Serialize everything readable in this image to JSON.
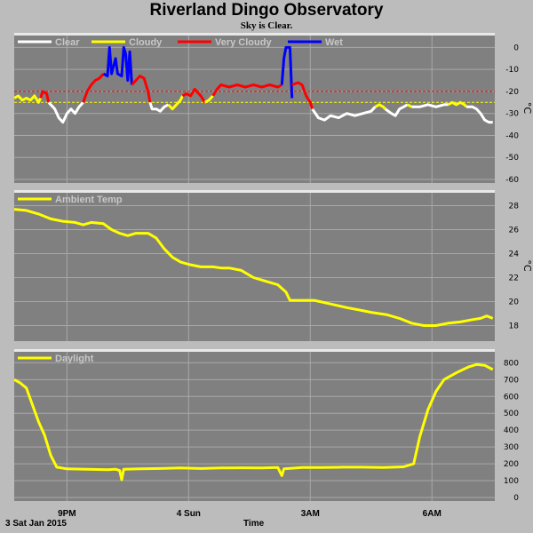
{
  "header": {
    "title": "Riverland Dingo Observatory",
    "subtitle": "Sky is Clear."
  },
  "footer": {
    "date": "3 Sat Jan 2015",
    "xlabel": "Time"
  },
  "colors": {
    "background": "#bcbcbc",
    "plot": "#808080",
    "grid": "#a8a8a8",
    "clear": "#ffffff",
    "cloudy": "#ffff00",
    "very_cloudy": "#ff0000",
    "wet": "#0000ff",
    "ambient": "#ffff00",
    "daylight": "#ffff00"
  },
  "chart_data": [
    {
      "type": "line",
      "name": "sky",
      "unit": "°C",
      "ylim": [
        -60,
        5
      ],
      "yticks": [
        0,
        -10,
        -20,
        -30,
        -40,
        -50,
        -60
      ],
      "thresholds": [
        {
          "value": -20,
          "color": "#ff0000"
        },
        {
          "value": -25,
          "color": "#ffff00"
        }
      ],
      "xlim": [
        19.7,
        31.55
      ],
      "xticks": [
        {
          "x": 21,
          "label": "9PM"
        },
        {
          "x": 24,
          "label": "4 Sun"
        },
        {
          "x": 27,
          "label": "3AM"
        },
        {
          "x": 30,
          "label": "6AM"
        }
      ],
      "legend": [
        "Clear",
        "Cloudy",
        "Very Cloudy",
        "Wet"
      ],
      "segments": [
        {
          "series": "Cloudy",
          "points": [
            [
              19.7,
              -23
            ],
            [
              19.8,
              -22
            ],
            [
              19.9,
              -24
            ],
            [
              20.0,
              -23
            ],
            [
              20.1,
              -24
            ],
            [
              20.2,
              -22
            ],
            [
              20.3,
              -25
            ],
            [
              20.35,
              -23
            ]
          ]
        },
        {
          "series": "Very Cloudy",
          "points": [
            [
              20.35,
              -23
            ],
            [
              20.4,
              -20
            ],
            [
              20.5,
              -21
            ],
            [
              20.55,
              -25
            ]
          ]
        },
        {
          "series": "Clear",
          "points": [
            [
              20.55,
              -25
            ],
            [
              20.7,
              -28
            ],
            [
              20.8,
              -32
            ],
            [
              20.9,
              -34
            ],
            [
              21.0,
              -30
            ],
            [
              21.1,
              -28
            ],
            [
              21.2,
              -30
            ],
            [
              21.3,
              -27
            ],
            [
              21.4,
              -25
            ]
          ]
        },
        {
          "series": "Very Cloudy",
          "points": [
            [
              21.4,
              -25
            ],
            [
              21.5,
              -20
            ],
            [
              21.6,
              -17
            ],
            [
              21.7,
              -15
            ],
            [
              21.8,
              -14
            ],
            [
              21.9,
              -12
            ]
          ]
        },
        {
          "series": "Wet",
          "points": [
            [
              21.9,
              -12
            ],
            [
              22.0,
              -13
            ],
            [
              22.05,
              0
            ],
            [
              22.1,
              -12
            ],
            [
              22.2,
              -5
            ],
            [
              22.25,
              -12
            ],
            [
              22.35,
              -13
            ],
            [
              22.4,
              0
            ],
            [
              22.45,
              -3
            ],
            [
              22.5,
              -15
            ],
            [
              22.55,
              -2
            ],
            [
              22.6,
              -17
            ]
          ]
        },
        {
          "series": "Very Cloudy",
          "points": [
            [
              22.6,
              -17
            ],
            [
              22.7,
              -15
            ],
            [
              22.8,
              -13
            ],
            [
              22.9,
              -14
            ],
            [
              23.0,
              -20
            ],
            [
              23.05,
              -25
            ]
          ]
        },
        {
          "series": "Clear",
          "points": [
            [
              23.05,
              -25
            ],
            [
              23.1,
              -28
            ],
            [
              23.2,
              -28
            ],
            [
              23.3,
              -29
            ],
            [
              23.4,
              -27
            ],
            [
              23.5,
              -26
            ]
          ]
        },
        {
          "series": "Cloudy",
          "points": [
            [
              23.5,
              -26
            ],
            [
              23.6,
              -28
            ],
            [
              23.7,
              -26
            ],
            [
              23.8,
              -24
            ],
            [
              23.85,
              -22
            ]
          ]
        },
        {
          "series": "Very Cloudy",
          "points": [
            [
              23.85,
              -22
            ],
            [
              23.95,
              -21
            ],
            [
              24.05,
              -22
            ],
            [
              24.15,
              -19
            ],
            [
              24.3,
              -22
            ],
            [
              24.4,
              -25
            ]
          ]
        },
        {
          "series": "Cloudy",
          "points": [
            [
              24.4,
              -25
            ],
            [
              24.5,
              -24
            ],
            [
              24.6,
              -22
            ]
          ]
        },
        {
          "series": "Very Cloudy",
          "points": [
            [
              24.6,
              -22
            ],
            [
              24.7,
              -19
            ],
            [
              24.8,
              -17
            ],
            [
              25.0,
              -18
            ],
            [
              25.2,
              -17
            ],
            [
              25.4,
              -18
            ],
            [
              25.6,
              -17
            ],
            [
              25.8,
              -18
            ],
            [
              26.0,
              -17
            ],
            [
              26.2,
              -18
            ],
            [
              26.3,
              -17
            ]
          ]
        },
        {
          "series": "Wet",
          "points": [
            [
              26.3,
              -17
            ],
            [
              26.35,
              -5
            ],
            [
              26.4,
              0
            ],
            [
              26.5,
              0
            ],
            [
              26.52,
              -10
            ],
            [
              26.55,
              -23
            ]
          ]
        },
        {
          "series": "Very Cloudy",
          "points": [
            [
              26.55,
              -17
            ],
            [
              26.7,
              -16
            ],
            [
              26.8,
              -17
            ],
            [
              26.9,
              -22
            ],
            [
              27.0,
              -25
            ],
            [
              27.05,
              -28
            ]
          ]
        },
        {
          "series": "Clear",
          "points": [
            [
              27.05,
              -28
            ],
            [
              27.2,
              -32
            ],
            [
              27.35,
              -33
            ],
            [
              27.5,
              -31
            ],
            [
              27.7,
              -32
            ],
            [
              27.9,
              -30
            ],
            [
              28.1,
              -31
            ],
            [
              28.3,
              -30
            ],
            [
              28.5,
              -29
            ],
            [
              28.6,
              -27
            ]
          ]
        },
        {
          "series": "Cloudy",
          "points": [
            [
              28.6,
              -27
            ],
            [
              28.7,
              -26
            ],
            [
              28.8,
              -27
            ],
            [
              28.85,
              -28
            ]
          ]
        },
        {
          "series": "Clear",
          "points": [
            [
              28.85,
              -28
            ],
            [
              29.0,
              -30
            ],
            [
              29.1,
              -31
            ],
            [
              29.2,
              -28
            ],
            [
              29.3,
              -27
            ],
            [
              29.4,
              -26
            ]
          ]
        },
        {
          "series": "Cloudy",
          "points": [
            [
              29.4,
              -26
            ],
            [
              29.5,
              -27
            ]
          ]
        },
        {
          "series": "Clear",
          "points": [
            [
              29.5,
              -27
            ],
            [
              29.7,
              -27
            ],
            [
              29.9,
              -26
            ],
            [
              30.1,
              -27
            ],
            [
              30.3,
              -26
            ],
            [
              30.4,
              -26
            ]
          ]
        },
        {
          "series": "Cloudy",
          "points": [
            [
              30.4,
              -26
            ],
            [
              30.5,
              -25
            ],
            [
              30.6,
              -26
            ],
            [
              30.7,
              -25
            ],
            [
              30.8,
              -26
            ],
            [
              30.85,
              -27
            ]
          ]
        },
        {
          "series": "Clear",
          "points": [
            [
              30.85,
              -27
            ],
            [
              31.0,
              -27
            ],
            [
              31.1,
              -28
            ],
            [
              31.2,
              -30
            ],
            [
              31.3,
              -33
            ],
            [
              31.4,
              -34
            ],
            [
              31.5,
              -34
            ]
          ]
        }
      ]
    },
    {
      "type": "line",
      "name": "ambient",
      "unit": "°C",
      "ylim": [
        17,
        29
      ],
      "yticks": [
        28,
        26,
        24,
        22,
        20,
        18
      ],
      "xlim": [
        19.7,
        31.55
      ],
      "legend": [
        "Ambient Temp"
      ],
      "series": [
        {
          "name": "Ambient Temp",
          "points": [
            [
              19.7,
              27.7
            ],
            [
              20.0,
              27.6
            ],
            [
              20.3,
              27.3
            ],
            [
              20.6,
              26.9
            ],
            [
              20.9,
              26.7
            ],
            [
              21.2,
              26.6
            ],
            [
              21.4,
              26.4
            ],
            [
              21.6,
              26.6
            ],
            [
              21.9,
              26.5
            ],
            [
              22.1,
              26.0
            ],
            [
              22.3,
              25.7
            ],
            [
              22.5,
              25.5
            ],
            [
              22.7,
              25.7
            ],
            [
              23.0,
              25.7
            ],
            [
              23.2,
              25.3
            ],
            [
              23.4,
              24.4
            ],
            [
              23.6,
              23.7
            ],
            [
              23.8,
              23.3
            ],
            [
              24.0,
              23.1
            ],
            [
              24.3,
              22.9
            ],
            [
              24.6,
              22.9
            ],
            [
              24.8,
              22.8
            ],
            [
              25.0,
              22.8
            ],
            [
              25.3,
              22.6
            ],
            [
              25.6,
              22.0
            ],
            [
              25.9,
              21.7
            ],
            [
              26.2,
              21.4
            ],
            [
              26.4,
              20.8
            ],
            [
              26.5,
              20.1
            ],
            [
              26.8,
              20.1
            ],
            [
              27.1,
              20.1
            ],
            [
              27.5,
              19.8
            ],
            [
              27.9,
              19.5
            ],
            [
              28.2,
              19.3
            ],
            [
              28.5,
              19.1
            ],
            [
              28.9,
              18.9
            ],
            [
              29.2,
              18.6
            ],
            [
              29.5,
              18.2
            ],
            [
              29.8,
              18.0
            ],
            [
              30.1,
              18.0
            ],
            [
              30.4,
              18.2
            ],
            [
              30.7,
              18.3
            ],
            [
              31.0,
              18.5
            ],
            [
              31.2,
              18.6
            ],
            [
              31.35,
              18.8
            ],
            [
              31.5,
              18.6
            ]
          ]
        }
      ]
    },
    {
      "type": "line",
      "name": "daylight",
      "unit": "",
      "ylim": [
        0,
        860
      ],
      "yticks": [
        800,
        700,
        600,
        500,
        400,
        300,
        200,
        100,
        0
      ],
      "xlim": [
        19.7,
        31.55
      ],
      "legend": [
        "Daylight"
      ],
      "series": [
        {
          "name": "Daylight",
          "points": [
            [
              19.7,
              700
            ],
            [
              19.85,
              680
            ],
            [
              20.0,
              650
            ],
            [
              20.15,
              550
            ],
            [
              20.3,
              450
            ],
            [
              20.45,
              370
            ],
            [
              20.6,
              250
            ],
            [
              20.75,
              180
            ],
            [
              21.0,
              170
            ],
            [
              21.5,
              168
            ],
            [
              22.0,
              165
            ],
            [
              22.2,
              168
            ],
            [
              22.3,
              160
            ],
            [
              22.35,
              105
            ],
            [
              22.4,
              168
            ],
            [
              22.8,
              170
            ],
            [
              23.3,
              172
            ],
            [
              23.8,
              175
            ],
            [
              24.3,
              172
            ],
            [
              24.8,
              175
            ],
            [
              25.3,
              176
            ],
            [
              25.8,
              175
            ],
            [
              26.2,
              178
            ],
            [
              26.3,
              130
            ],
            [
              26.35,
              170
            ],
            [
              26.8,
              178
            ],
            [
              27.3,
              178
            ],
            [
              27.8,
              180
            ],
            [
              28.3,
              180
            ],
            [
              28.8,
              178
            ],
            [
              29.3,
              182
            ],
            [
              29.55,
              200
            ],
            [
              29.7,
              360
            ],
            [
              29.9,
              520
            ],
            [
              30.1,
              630
            ],
            [
              30.3,
              700
            ],
            [
              30.6,
              740
            ],
            [
              30.9,
              775
            ],
            [
              31.1,
              790
            ],
            [
              31.3,
              785
            ],
            [
              31.5,
              760
            ]
          ]
        }
      ]
    }
  ]
}
